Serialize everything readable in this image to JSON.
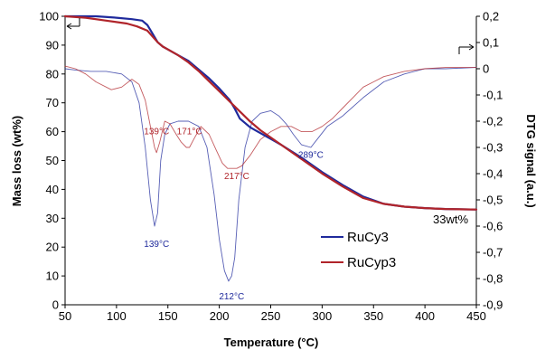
{
  "chart_data": {
    "type": "line",
    "xlabel": "Temperature (°C)",
    "ylabel": "Mass loss (wt%)",
    "y2label": "DTG signal (a.u.)",
    "xlim": [
      50,
      450
    ],
    "ylim": [
      0,
      100
    ],
    "y2lim": [
      -0.9,
      0.2
    ],
    "x_ticks": [
      "50",
      "100",
      "150",
      "200",
      "250",
      "300",
      "350",
      "400",
      "450"
    ],
    "y_ticks": [
      "0",
      "10",
      "20",
      "30",
      "40",
      "50",
      "60",
      "70",
      "80",
      "90",
      "100"
    ],
    "y2_ticks": [
      "0,2",
      "0,1",
      "0",
      "-0,1",
      "-0,2",
      "-0,3",
      "-0,4",
      "-0,5",
      "-0,6",
      "-0,7",
      "-0,8",
      "-0,9"
    ],
    "grid": false,
    "legend": "right-inside",
    "colors": {
      "RuCy3": "#1f2a9c",
      "RuCyp3": "#b0242a"
    },
    "series": [
      {
        "name": "RuCy3",
        "kind": "mass",
        "axis": "left",
        "x": [
          50,
          80,
          100,
          115,
          125,
          130,
          135,
          140,
          145,
          150,
          160,
          170,
          180,
          190,
          200,
          210,
          215,
          220,
          230,
          240,
          250,
          260,
          280,
          300,
          320,
          340,
          360,
          380,
          400,
          420,
          450
        ],
        "y": [
          100,
          100,
          99.5,
          99,
          98.5,
          97,
          94,
          91,
          89.5,
          88.5,
          86.5,
          84.5,
          81.5,
          78.5,
          75,
          71,
          68,
          64.5,
          61.5,
          59.5,
          57.5,
          55.5,
          51,
          46,
          41.5,
          37.5,
          35,
          34,
          33.5,
          33.2,
          33
        ]
      },
      {
        "name": "RuCyp3",
        "kind": "mass",
        "axis": "left",
        "x": [
          50,
          70,
          90,
          110,
          120,
          130,
          135,
          140,
          145,
          150,
          160,
          170,
          180,
          190,
          200,
          210,
          220,
          230,
          240,
          250,
          260,
          280,
          300,
          320,
          340,
          360,
          380,
          400,
          420,
          450
        ],
        "y": [
          100,
          99.5,
          98.5,
          97.5,
          96.5,
          95,
          93,
          91,
          89.5,
          88.5,
          86.5,
          84,
          81,
          77.5,
          74,
          70.5,
          67,
          63.5,
          60.5,
          58,
          55.5,
          50.5,
          45.5,
          41,
          37,
          35,
          34,
          33.5,
          33.2,
          33
        ]
      },
      {
        "name": "RuCy3 DTG",
        "kind": "dtg",
        "axis": "right",
        "x": [
          50,
          60,
          75,
          90,
          105,
          115,
          122,
          128,
          133,
          137,
          140,
          143,
          147,
          152,
          160,
          170,
          180,
          188,
          195,
          200,
          205,
          209,
          212,
          215,
          219,
          225,
          232,
          240,
          250,
          258,
          265,
          272,
          280,
          289,
          295,
          305,
          320,
          340,
          360,
          380,
          400,
          420,
          450
        ],
        "y": [
          0,
          -0.005,
          -0.01,
          -0.01,
          -0.02,
          -0.05,
          -0.13,
          -0.3,
          -0.5,
          -0.6,
          -0.55,
          -0.35,
          -0.25,
          -0.21,
          -0.2,
          -0.2,
          -0.22,
          -0.3,
          -0.48,
          -0.65,
          -0.77,
          -0.81,
          -0.79,
          -0.72,
          -0.5,
          -0.3,
          -0.2,
          -0.17,
          -0.16,
          -0.18,
          -0.21,
          -0.25,
          -0.29,
          -0.3,
          -0.27,
          -0.22,
          -0.18,
          -0.11,
          -0.05,
          -0.02,
          0,
          0,
          0.005
        ]
      },
      {
        "name": "RuCyp3 DTG",
        "kind": "dtg",
        "axis": "right",
        "x": [
          50,
          60,
          70,
          80,
          95,
          105,
          115,
          122,
          128,
          133,
          137,
          139,
          142,
          147,
          152,
          158,
          163,
          168,
          171,
          175,
          182,
          190,
          197,
          203,
          208,
          212,
          217,
          222,
          230,
          240,
          250,
          260,
          270,
          280,
          290,
          300,
          310,
          320,
          330,
          340,
          350,
          360,
          380,
          400,
          420,
          450
        ],
        "y": [
          0.01,
          0,
          -0.02,
          -0.05,
          -0.08,
          -0.07,
          -0.04,
          -0.06,
          -0.12,
          -0.22,
          -0.3,
          -0.32,
          -0.28,
          -0.2,
          -0.21,
          -0.25,
          -0.28,
          -0.3,
          -0.3,
          -0.27,
          -0.22,
          -0.25,
          -0.31,
          -0.36,
          -0.38,
          -0.38,
          -0.38,
          -0.37,
          -0.33,
          -0.27,
          -0.24,
          -0.22,
          -0.22,
          -0.24,
          -0.24,
          -0.22,
          -0.19,
          -0.15,
          -0.11,
          -0.07,
          -0.05,
          -0.03,
          -0.01,
          0,
          0.005,
          0.005
        ]
      }
    ],
    "annotations": [
      {
        "text": "139°C",
        "x": 139,
        "y2": -0.25,
        "series": "RuCyp3"
      },
      {
        "text": "171°C",
        "x": 171,
        "y2": -0.25,
        "series": "RuCyp3"
      },
      {
        "text": "217°C",
        "x": 217,
        "y2": -0.42,
        "series": "RuCyp3"
      },
      {
        "text": "139°C",
        "x": 139,
        "y2": -0.68,
        "series": "RuCy3"
      },
      {
        "text": "212°C",
        "x": 212,
        "y2": -0.88,
        "series": "RuCy3"
      },
      {
        "text": "289°C",
        "x": 289,
        "y2": -0.34,
        "series": "RuCy3"
      }
    ],
    "end_label": "33wt%"
  }
}
